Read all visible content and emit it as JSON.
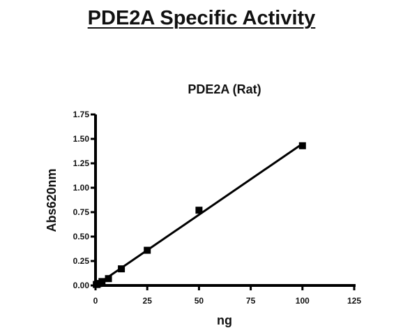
{
  "page": {
    "title": "PDE2A Specific Activity"
  },
  "chart_data": {
    "type": "scatter",
    "title": "PDE2A (Rat)",
    "xlabel": "ng",
    "ylabel": "Abs620nm",
    "xlim": [
      0,
      125
    ],
    "ylim": [
      0,
      1.75
    ],
    "xticks": [
      0,
      25,
      50,
      75,
      100,
      125
    ],
    "yticks": [
      0.0,
      0.25,
      0.5,
      0.75,
      1.0,
      1.25,
      1.5,
      1.75
    ],
    "xtick_labels": [
      "0",
      "25",
      "50",
      "75",
      "100",
      "125"
    ],
    "ytick_labels": [
      "0.00",
      "0.25",
      "0.50",
      "0.75",
      "1.00",
      "1.25",
      "1.50",
      "1.75"
    ],
    "grid": false,
    "legend": "none",
    "series": [
      {
        "x": [
          0.39,
          0.78,
          1.56,
          3.13,
          6.25,
          12.5,
          25,
          50,
          100
        ],
        "y": [
          0.01,
          0.01,
          0.02,
          0.04,
          0.07,
          0.17,
          0.36,
          0.77,
          1.43
        ],
        "marker": "square",
        "color": "#000000",
        "fit": "linear"
      }
    ]
  }
}
